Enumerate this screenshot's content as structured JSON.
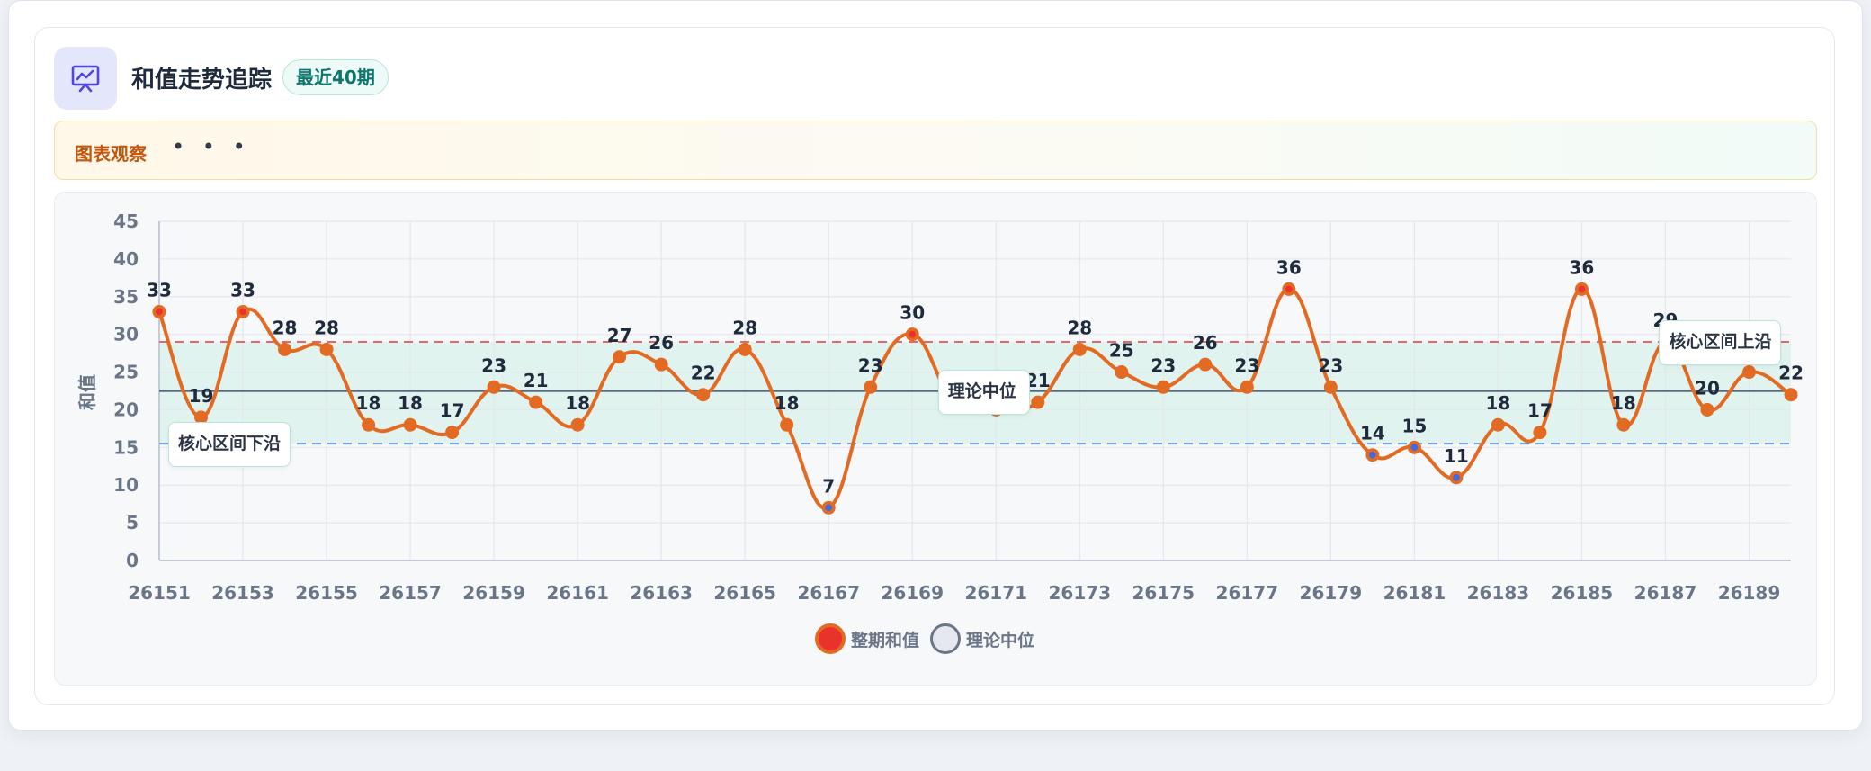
{
  "header": {
    "title": "和值走势追踪",
    "badge": "最近40期",
    "icon": "presentation-chart-icon",
    "icon_color": "#4f46e5"
  },
  "observation": {
    "label": "图表观察",
    "dots": "• • •"
  },
  "chart_data": {
    "type": "line",
    "x": [
      26151,
      26152,
      26153,
      26154,
      26155,
      26156,
      26157,
      26158,
      26159,
      26160,
      26161,
      26162,
      26163,
      26164,
      26165,
      26166,
      26167,
      26168,
      26169,
      26170,
      26171,
      26172,
      26173,
      26174,
      26175,
      26176,
      26177,
      26178,
      26179,
      26180,
      26181,
      26182,
      26183,
      26184,
      26185,
      26186,
      26187,
      26188,
      26189,
      26190
    ],
    "x_tick_labels": [
      "26151",
      "26153",
      "26155",
      "26157",
      "26159",
      "26161",
      "26163",
      "26165",
      "26167",
      "26169",
      "26171",
      "26173",
      "26175",
      "26177",
      "26179",
      "26181",
      "26183",
      "26185",
      "26187",
      "26189"
    ],
    "series": [
      {
        "name": "整期和值",
        "values": [
          33,
          19,
          33,
          28,
          28,
          18,
          18,
          17,
          23,
          21,
          18,
          27,
          26,
          22,
          28,
          18,
          7,
          23,
          30,
          21,
          20,
          21,
          28,
          25,
          23,
          26,
          23,
          36,
          23,
          14,
          15,
          11,
          18,
          17,
          36,
          18,
          29,
          20,
          25,
          22
        ],
        "color": "#e26a22",
        "high_marker_color": "#e8322a",
        "low_marker_color": "#4169e1"
      },
      {
        "name": "理论中位",
        "value": 22.5,
        "color": "#475569"
      }
    ],
    "reference_lines": {
      "upper": 29,
      "upper_label": "核心区间上沿",
      "upper_color": "#e06a6a",
      "lower": 15.5,
      "lower_label": "核心区间下沿",
      "lower_color": "#6a9be0",
      "median_label": "理论中位",
      "band_color": "#d9f1e9"
    },
    "ylabel": "和值",
    "xlabel": "",
    "ylim": [
      0,
      45
    ],
    "yticks": [
      0,
      5,
      10,
      15,
      20,
      25,
      30,
      35,
      40,
      45
    ],
    "grid": true,
    "legend_position": "bottom-center"
  }
}
